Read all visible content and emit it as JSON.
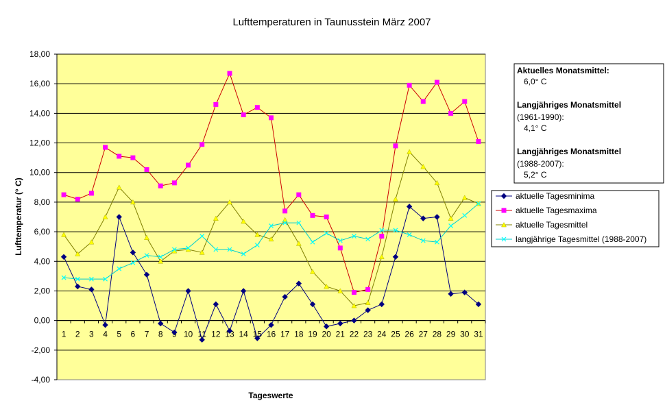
{
  "chart_data": {
    "type": "line",
    "title": "Lufttemperaturen in Taunusstein  März  2007",
    "xlabel": "Tageswerte",
    "ylabel": "Lufttemperatur (° C)",
    "ylim": [
      -4,
      18
    ],
    "y_tick_labels": [
      "-4,00",
      "-2,00",
      "0,00",
      "2,00",
      "4,00",
      "6,00",
      "8,00",
      "10,00",
      "12,00",
      "14,00",
      "16,00",
      "18,00"
    ],
    "grid": true,
    "categories": [
      "1",
      "2",
      "3",
      "4",
      "5",
      "6",
      "7",
      "8",
      "9",
      "10",
      "11",
      "12",
      "13",
      "14",
      "15",
      "16",
      "17",
      "18",
      "19",
      "20",
      "21",
      "22",
      "23",
      "24",
      "25",
      "26",
      "27",
      "28",
      "29",
      "30",
      "31"
    ],
    "series": [
      {
        "name": "aktuelle Tagesminima",
        "color": "#000080",
        "marker": "diamond",
        "values": [
          4.3,
          2.3,
          2.1,
          -0.3,
          7.0,
          4.6,
          3.1,
          -0.2,
          -0.8,
          2.0,
          -1.3,
          1.1,
          -0.7,
          2.0,
          -1.2,
          -0.3,
          1.6,
          2.5,
          1.1,
          -0.4,
          -0.2,
          0.0,
          0.7,
          1.1,
          4.3,
          7.7,
          6.9,
          7.0,
          1.8,
          1.9,
          1.1
        ]
      },
      {
        "name": "aktuelle Tagesmaxima",
        "color": "#FF00FF",
        "marker": "square",
        "values": [
          8.5,
          8.2,
          8.6,
          11.7,
          11.1,
          11.0,
          10.2,
          9.1,
          9.3,
          10.5,
          11.9,
          14.6,
          16.7,
          13.9,
          14.4,
          13.7,
          7.4,
          8.5,
          7.1,
          7.0,
          4.9,
          1.9,
          2.1,
          5.7,
          11.8,
          15.9,
          14.8,
          16.1,
          14.0,
          14.8,
          12.1
        ]
      },
      {
        "name": "aktuelle Tagesmittel",
        "color": "#FFFF00",
        "marker": "triangle",
        "values": [
          5.8,
          4.5,
          5.3,
          7.0,
          9.0,
          8.0,
          5.6,
          4.0,
          4.7,
          4.8,
          4.6,
          6.9,
          8.0,
          6.7,
          5.8,
          5.5,
          6.8,
          5.2,
          3.3,
          2.3,
          2.0,
          1.0,
          1.2,
          4.3,
          8.2,
          11.4,
          10.4,
          9.3,
          6.9,
          8.3,
          7.9
        ]
      },
      {
        "name": "langjährige Tagesmittel (1988-2007)",
        "color": "#00FFFF",
        "marker": "x",
        "values": [
          2.9,
          2.8,
          2.8,
          2.8,
          3.5,
          3.9,
          4.4,
          4.3,
          4.8,
          4.9,
          5.7,
          4.8,
          4.8,
          4.5,
          5.1,
          6.4,
          6.6,
          6.6,
          5.3,
          5.9,
          5.4,
          5.7,
          5.5,
          6.1,
          6.1,
          5.8,
          5.4,
          5.3,
          6.4,
          7.1,
          7.9
        ]
      }
    ],
    "legend_position": "right",
    "plot_background": "#FFFF99"
  },
  "info_box": {
    "heading1": "Aktuelles Monatsmittel:",
    "value1": "6,0° C",
    "heading2": "Langjähriges Monatsmittel",
    "period2": "(1961-1990):",
    "value2": "4,1° C",
    "heading3": "Langjähriges Monatsmittel",
    "period3": "(1988-2007):",
    "value3": "5,2° C"
  }
}
